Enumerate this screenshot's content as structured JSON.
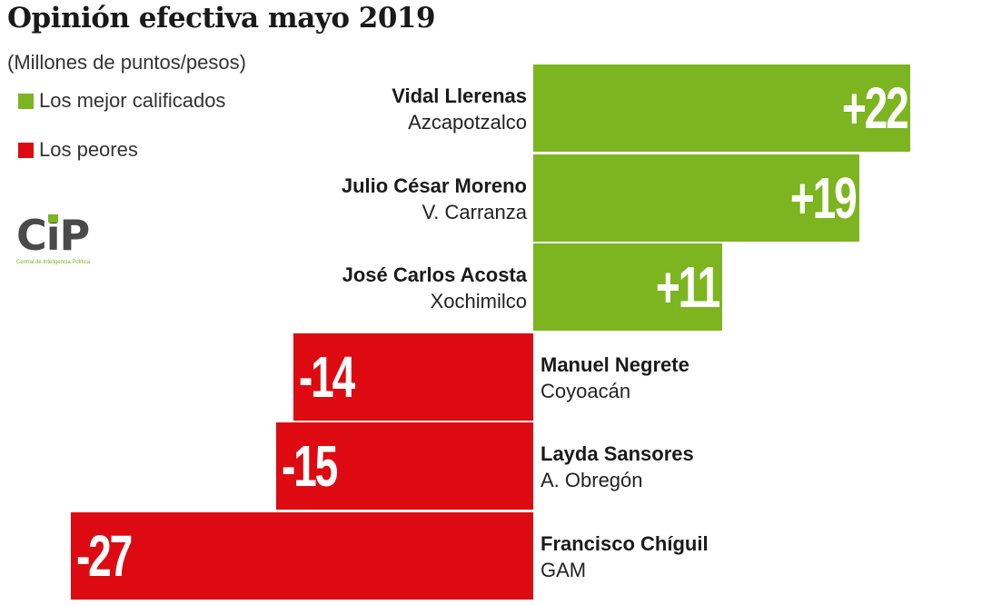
{
  "chart_data": {
    "type": "bar",
    "orientation": "horizontal",
    "title": "Opinión efectiva mayo 2019",
    "subtitle": "(Millones de puntos/pesos)",
    "legend": [
      {
        "label": "Los mejor calificados",
        "color": "#7cb51f"
      },
      {
        "label": "Los peores",
        "color": "#dd0a12"
      }
    ],
    "legend_position": "top-left",
    "grid": false,
    "xlim": [
      -27,
      22
    ],
    "categories": [
      {
        "name": "Vidal Llerenas",
        "region": "Azcapotzalco"
      },
      {
        "name": "Julio César Moreno",
        "region": "V. Carranza"
      },
      {
        "name": "José Carlos Acosta",
        "region": "Xochimilco"
      },
      {
        "name": "Manuel Negrete",
        "region": "Coyoacán"
      },
      {
        "name": "Layda Sansores",
        "region": "A. Obregón"
      },
      {
        "name": "Francisco Chíguil",
        "region": "GAM"
      }
    ],
    "values": [
      22,
      19,
      11,
      -14,
      -15,
      -27
    ],
    "data_labels": [
      "+22",
      "+19",
      "+11",
      "-14",
      "-15",
      "-27"
    ]
  },
  "logo": {
    "text": "CiP",
    "tagline": "Central de Inteligencia Política"
  }
}
